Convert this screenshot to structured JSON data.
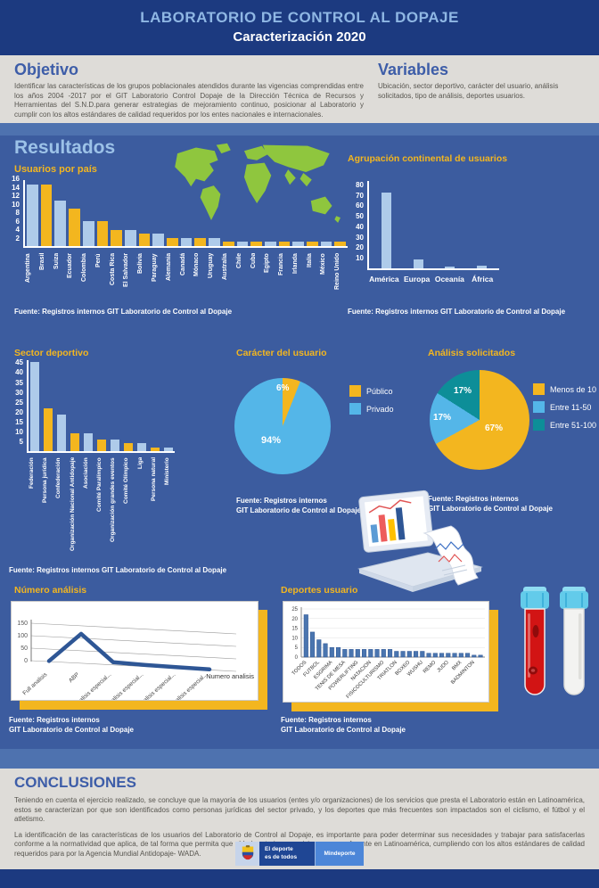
{
  "header": {
    "title": "LABORATORIO DE CONTROL AL DOPAJE",
    "subtitle": "Caracterización 2020"
  },
  "sections": {
    "objetivo": {
      "heading": "Objetivo",
      "body": "Identificar las características de los grupos poblacionales atendidos durante las vigencias comprendidas entre los años 2004 -2017 por el GIT Laboratorio Control Dopaje de la Dirección Técnica de Recursos y Herramientas del S.N.D.para generar estrategias de mejoramiento continuo, posicionar al Laboratorio y cumplir con los altos estándares de calidad requeridos por los entes nacionales e internacionales."
    },
    "variables": {
      "heading": "Variables",
      "body": "Ubicación, sector deportivo, carácter del usuario, análisis solicitados, tipo de análisis, deportes usuarios."
    },
    "resultados_heading": "Resultados",
    "conclusiones": {
      "heading": "CONCLUSIONES",
      "p1": "Teniendo en cuenta el ejercicio realizado, se concluye que la mayoría de los usuarios (entes y/o organizaciones) de los servicios que presta el Laboratorio están en Latinoamérica, estos se caracterizan por que son identificados como personas jurídicas del sector privado, y los deportes que más frecuentes son impactados son el ciclismo, el fútbol y el atletismo.",
      "p2": "La identificación de las características de los usuarios del Laboratorio de Control al Dopaje, es importante para poder determinar sus necesidades y trabajar para satisfacerlas conforme a la normatividad que aplica, de tal forma que permita que el Laboratorio se posicione como referente en Latinoamérica, cumpliendo con los altos estándares de calidad requeridos para por la Agencia Mundial Antidopaje- WADA."
    }
  },
  "sources": {
    "full": "Fuente: Registros internos GIT Laboratorio de Control al Dopaje",
    "line1": "Fuente: Registros internos",
    "line2": "GIT Laboratorio de Control al Dopaje"
  },
  "logo": {
    "line1": "El deporte",
    "line2": "es de todos",
    "ministry": "Mindeporte"
  },
  "colors": {
    "navy": "#1C3A80",
    "background": "#3C5C9F",
    "band": "#4E72AF",
    "panel_gray": "#DEDCD8",
    "heading_light_blue": "#9CC2E8",
    "heading_blue": "#3D5DA8",
    "yellow": "#F3B61F",
    "light_blue_bar": "#AECBEA",
    "pie_blue": "#54B6E8",
    "teal": "#0D8E98",
    "excel_line": "#2E5695",
    "excel_bar": "#4A75AF",
    "map_green": "#8FC63E",
    "tube_red": "#D21414",
    "tube_cap": "#63CBEA"
  },
  "chart_data": [
    {
      "id": "usuarios_pais",
      "type": "bar",
      "title": "Usuarios por país",
      "categories": [
        "Argentina",
        "Brasil",
        "Suiza",
        "Ecuador",
        "Colombia",
        "Perú",
        "Costa Rica",
        "El Salvador",
        "Bolivia",
        "Paraguay",
        "Alemania",
        "Canadá",
        "Mónaco",
        "Uruguay",
        "Australia",
        "Chile",
        "Cuba",
        "Egipto",
        "Francia",
        "Irlanda",
        "Italia",
        "México",
        "Reino Unido"
      ],
      "values": [
        15,
        15,
        11,
        9,
        6,
        6,
        4,
        4,
        3,
        3,
        2,
        2,
        2,
        2,
        1,
        1,
        1,
        1,
        1,
        1,
        1,
        1,
        1
      ],
      "bar_colors": [
        "b",
        "y",
        "b",
        "y",
        "b",
        "y",
        "y",
        "b",
        "y",
        "b",
        "y",
        "b",
        "y",
        "b",
        "y",
        "b",
        "y",
        "b",
        "y",
        "b",
        "y",
        "b",
        "y"
      ],
      "ylim": [
        0,
        16
      ],
      "yticks": [
        2,
        4,
        6,
        8,
        10,
        12,
        14,
        16
      ],
      "legend_position": "none",
      "grid": false
    },
    {
      "id": "agrupacion_continental",
      "type": "bar",
      "title": "Agrupación continental de usuarios",
      "categories": [
        "América",
        "Europa",
        "Oceanía",
        "África"
      ],
      "values": [
        74,
        9,
        2,
        3
      ],
      "ylim": [
        0,
        85
      ],
      "yticks": [
        10,
        20,
        30,
        40,
        50,
        60,
        70,
        80
      ],
      "grid": false
    },
    {
      "id": "sector_deportivo",
      "type": "bar",
      "title": "Sector deportivo",
      "categories": [
        "Federación",
        "Persona jurídica",
        "Confederación",
        "Organización Nacional Antidopaje",
        "Asociación",
        "Comité Paralímpico",
        "Organización grandes eventos",
        "Comité Olímpico",
        "Liga",
        "Persona natural",
        "Ministerio"
      ],
      "values": [
        46,
        22,
        19,
        9,
        9,
        6,
        6,
        4,
        4,
        2,
        2
      ],
      "bar_colors": [
        "b",
        "y",
        "b",
        "y",
        "b",
        "y",
        "b",
        "y",
        "b",
        "y",
        "b"
      ],
      "ylim": [
        0,
        47
      ],
      "yticks": [
        5,
        10,
        15,
        20,
        25,
        30,
        35,
        40,
        45
      ],
      "grid": false
    },
    {
      "id": "caracter_usuario",
      "type": "pie",
      "title": "Carácter del usuario",
      "labels": [
        "Público",
        "Privado"
      ],
      "values": [
        6,
        94
      ],
      "slice_labels": [
        "6%",
        "94%"
      ],
      "colors": [
        "#F3B61F",
        "#54B6E8"
      ],
      "legend_position": "right"
    },
    {
      "id": "analisis_solicitados",
      "type": "pie",
      "title": "Análisis solicitados",
      "labels": [
        "Menos de 10",
        "Entre 11-50",
        "Entre 51-100"
      ],
      "values": [
        67,
        17,
        17
      ],
      "slice_labels": [
        "67%",
        "17%",
        "17%"
      ],
      "colors": [
        "#F3B61F",
        "#54B6E8",
        "#0D8E98"
      ],
      "legend_position": "right"
    },
    {
      "id": "numero_analisis",
      "type": "line",
      "title": "Número análisis",
      "categories": [
        "Full analisis",
        "ABP",
        "Analisis especial...",
        "Analisis especial...",
        "Analisis especial...",
        "Analisis especial..."
      ],
      "values": [
        2,
        110,
        10,
        6,
        4,
        2
      ],
      "series_label": "Numero analisis",
      "yticks": [
        0,
        50,
        100,
        150
      ],
      "ylim": [
        0,
        150
      ],
      "style": "excel-3d"
    },
    {
      "id": "deportes_usuario",
      "type": "bar",
      "title": "Deportes usuario",
      "categories": [
        "TODOS",
        "FUTBOL",
        "ESGRIMA",
        "TENIS DE MESA",
        "POWERLIFTING",
        "NATACION",
        "FISICOCULTURISMO",
        "TRIATLON",
        "BOXEO",
        "WUSHU",
        "REMO",
        "JUDO",
        "BMX",
        "BADMINTON"
      ],
      "values": [
        22,
        13,
        9,
        7,
        5,
        5,
        4,
        4,
        4,
        4,
        4,
        4,
        4,
        4,
        3,
        3,
        3,
        3,
        3,
        2,
        2,
        2,
        2,
        2,
        2,
        2,
        1,
        1
      ],
      "label_every": 2,
      "yticks": [
        0,
        5,
        10,
        15,
        20,
        25
      ],
      "ylim": [
        0,
        25
      ],
      "style": "excel"
    }
  ]
}
